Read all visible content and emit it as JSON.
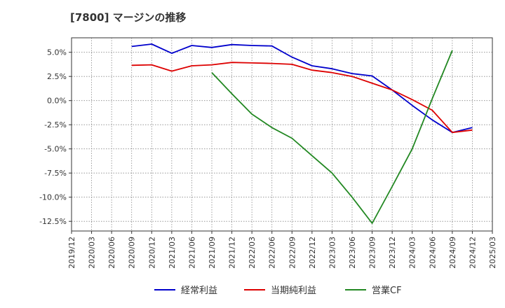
{
  "chart_data": {
    "type": "line",
    "title": "[7800]  マージンの推移",
    "xlabel": "",
    "ylabel": "",
    "x_ticks": [
      "2019/12",
      "2020/03",
      "2020/06",
      "2020/09",
      "2020/12",
      "2021/03",
      "2021/06",
      "2021/09",
      "2021/12",
      "2022/03",
      "2022/06",
      "2022/09",
      "2022/12",
      "2023/03",
      "2023/06",
      "2023/09",
      "2023/12",
      "2024/03",
      "2024/06",
      "2024/09",
      "2024/12",
      "2025/03"
    ],
    "y_ticks": [
      "5.0%",
      "2.5%",
      "0.0%",
      "-2.5%",
      "-5.0%",
      "-7.5%",
      "-10.0%",
      "-12.5%"
    ],
    "y_tick_values": [
      5.0,
      2.5,
      0.0,
      -2.5,
      -5.0,
      -7.5,
      -10.0,
      -12.5
    ],
    "ylim": [
      -13.5,
      6.5
    ],
    "grid": true,
    "legend_position": "bottom",
    "series": [
      {
        "name": "経常利益",
        "color": "#0000cc",
        "x": [
          "2020/09",
          "2020/12",
          "2021/03",
          "2021/06",
          "2021/09",
          "2021/12",
          "2022/03",
          "2022/06",
          "2022/09",
          "2022/12",
          "2023/03",
          "2023/06",
          "2023/09",
          "2023/12",
          "2024/03",
          "2024/06",
          "2024/09",
          "2024/12"
        ],
        "values": [
          5.6,
          5.85,
          4.9,
          5.7,
          5.5,
          5.8,
          5.7,
          5.65,
          4.5,
          3.6,
          3.3,
          2.8,
          2.55,
          1.1,
          -0.5,
          -2.0,
          -3.3,
          -2.8
        ]
      },
      {
        "name": "当期純利益",
        "color": "#dd0000",
        "x": [
          "2020/09",
          "2020/12",
          "2021/03",
          "2021/06",
          "2021/09",
          "2021/12",
          "2022/03",
          "2022/06",
          "2022/09",
          "2022/12",
          "2023/03",
          "2023/06",
          "2023/09",
          "2023/12",
          "2024/03",
          "2024/06",
          "2024/09",
          "2024/12"
        ],
        "values": [
          3.65,
          3.7,
          3.05,
          3.6,
          3.7,
          3.95,
          3.9,
          3.85,
          3.75,
          3.15,
          2.9,
          2.5,
          1.8,
          1.1,
          0.1,
          -1.0,
          -3.3,
          -3.05
        ]
      },
      {
        "name": "営業CF",
        "color": "#228822",
        "x": [
          "2021/09",
          "2021/12",
          "2022/03",
          "2022/06",
          "2022/09",
          "2022/12",
          "2023/03",
          "2023/06",
          "2023/09",
          "2023/12",
          "2024/03",
          "2024/06",
          "2024/09"
        ],
        "values": [
          2.9,
          0.7,
          -1.4,
          -2.8,
          -3.9,
          -5.7,
          -7.5,
          -10.0,
          -12.7,
          -8.9,
          -5.0,
          0.2,
          5.2
        ]
      }
    ]
  }
}
